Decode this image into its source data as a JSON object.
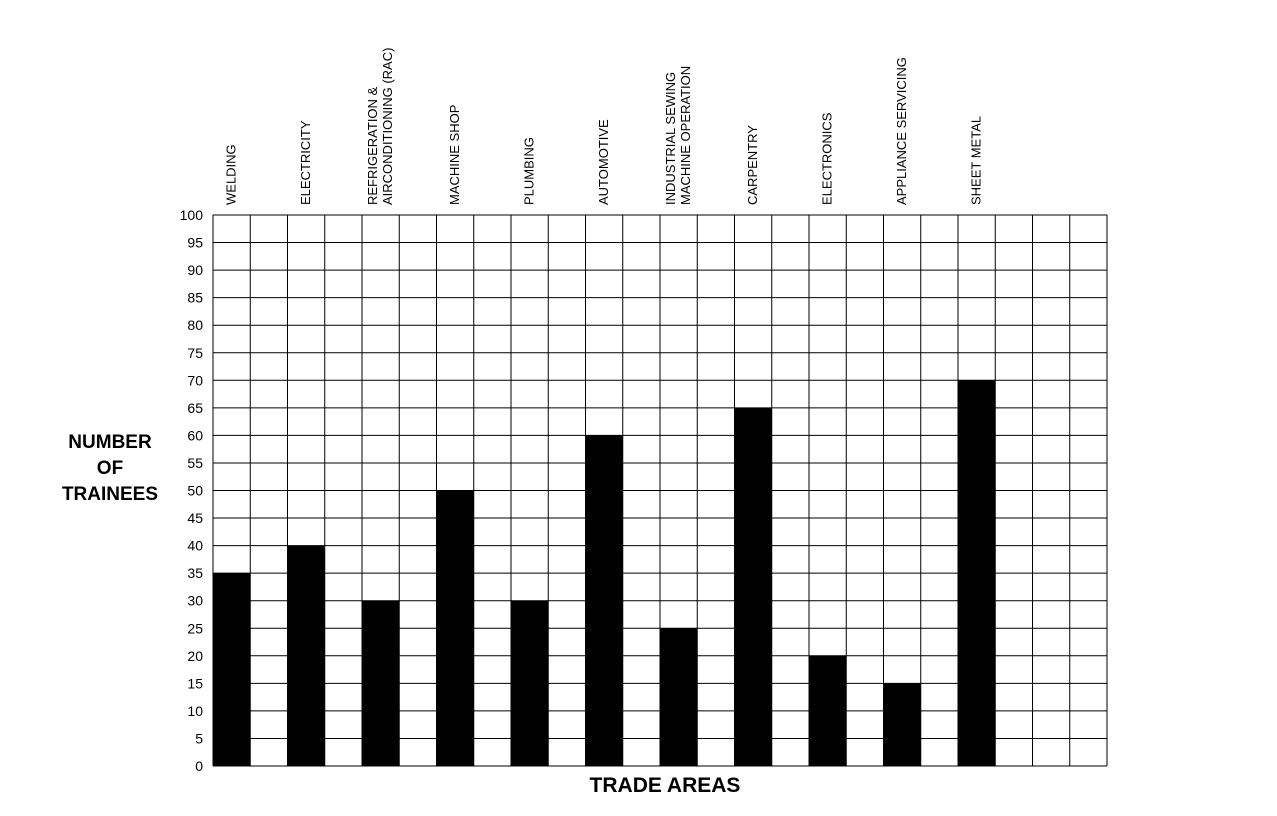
{
  "chart_data": {
    "type": "bar",
    "categories": [
      [
        "WELDING"
      ],
      [
        "ELECTRICITY"
      ],
      [
        "REFRIGERATION &",
        "AIRCONDITIONING (RAC)"
      ],
      [
        "MACHINE SHOP"
      ],
      [
        "PLUMBING"
      ],
      [
        "AUTOMOTIVE"
      ],
      [
        "INDUSTRIAL SEWING",
        "MACHINE OPERATION"
      ],
      [
        "CARPENTRY"
      ],
      [
        "ELECTRONICS"
      ],
      [
        "APPLIANCE SERVICING"
      ],
      [
        "SHEET METAL"
      ]
    ],
    "values": [
      35,
      40,
      30,
      50,
      30,
      60,
      25,
      65,
      20,
      15,
      70
    ],
    "ylabel_lines": [
      "NUMBER",
      "OF",
      "TRAINEES"
    ],
    "xlabel": "TRADE AREAS",
    "ylim": [
      0,
      100
    ],
    "yticks": [
      0,
      5,
      10,
      15,
      20,
      25,
      30,
      35,
      40,
      45,
      50,
      55,
      60,
      65,
      70,
      75,
      80,
      85,
      90,
      95,
      100
    ],
    "grid": true,
    "bar_color": "#000000",
    "grid_color": "#000000"
  }
}
